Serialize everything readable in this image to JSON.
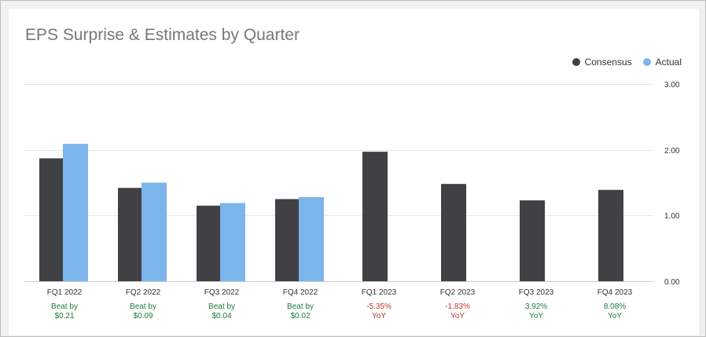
{
  "chart_data": {
    "type": "bar",
    "title": "EPS Surprise & Estimates by Quarter",
    "categories": [
      "FQ1 2022",
      "FQ2 2022",
      "FQ3 2022",
      "FQ4 2022",
      "FQ1 2023",
      "FQ2 2023",
      "FQ3 2023",
      "FQ4 2023"
    ],
    "series": [
      {
        "name": "Consensus",
        "color": "#414044",
        "values": [
          1.87,
          1.42,
          1.15,
          1.25,
          1.97,
          1.48,
          1.23,
          1.39
        ]
      },
      {
        "name": "Actual",
        "color": "#7cb5ec",
        "values": [
          2.09,
          1.5,
          1.19,
          1.28,
          null,
          null,
          null,
          null
        ]
      }
    ],
    "ylim": [
      0,
      3
    ],
    "yticks": [
      "0.00",
      "1.00",
      "2.00",
      "3.00"
    ],
    "ytick_values": [
      0,
      1,
      2,
      3
    ],
    "grid": true,
    "legend_position": "top-right",
    "annotations": [
      {
        "line1": "Beat by",
        "line2": "$0.21",
        "status": "positive"
      },
      {
        "line1": "Beat by",
        "line2": "$0.09",
        "status": "positive"
      },
      {
        "line1": "Beat by",
        "line2": "$0.04",
        "status": "positive"
      },
      {
        "line1": "Beat by",
        "line2": "$0.02",
        "status": "positive"
      },
      {
        "line1": "-5.35%",
        "line2": "YoY",
        "status": "negative"
      },
      {
        "line1": "-1.83%",
        "line2": "YoY",
        "status": "negative"
      },
      {
        "line1": "3.92%",
        "line2": "YoY",
        "status": "positive"
      },
      {
        "line1": "8.08%",
        "line2": "YoY",
        "status": "positive"
      }
    ],
    "colors": {
      "positive": "#1d7b3c",
      "negative": "#c0392b"
    }
  }
}
